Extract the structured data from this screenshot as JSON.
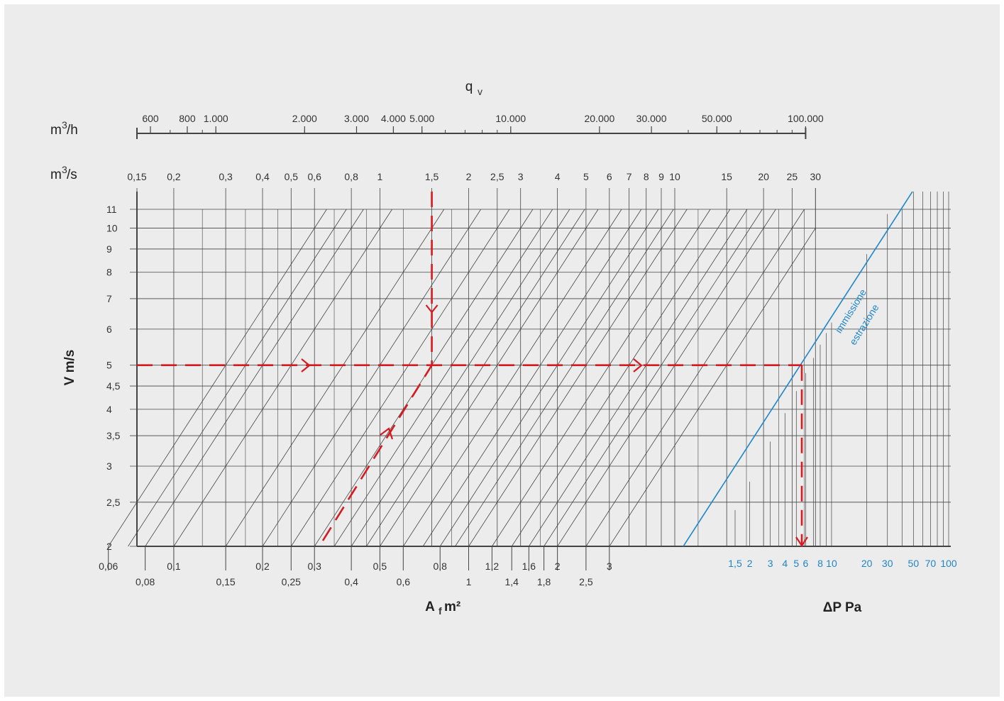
{
  "chart_data": {
    "type": "nomogram",
    "top_axis": {
      "title": "q",
      "title_sub": "v",
      "unit_h": "m",
      "unit_h_sup": "3",
      "unit_h_suffix": "/h",
      "ticks_h": [
        "600",
        "800",
        "1.000",
        "2.000",
        "3.000",
        "4.000",
        "5.000",
        "10.000",
        "20.000",
        "30.000",
        "50.000",
        "100.000"
      ],
      "unit_s": "m",
      "unit_s_sup": "3",
      "unit_s_suffix": "/s",
      "ticks_s": [
        "0,15",
        "0,2",
        "0,3",
        "0,4",
        "0,5",
        "0,6",
        "0,8",
        "1",
        "1,5",
        "2",
        "2,5",
        "3",
        "4",
        "5",
        "6",
        "7",
        "8",
        "9",
        "10",
        "15",
        "20",
        "25",
        "30"
      ]
    },
    "y_axis": {
      "label": "V m/s",
      "ticks": [
        "11",
        "10",
        "9",
        "8",
        "7",
        "6",
        "5",
        "4,5",
        "4",
        "3,5",
        "3",
        "2,5",
        "2"
      ],
      "range": [
        2,
        11
      ],
      "scale": "log"
    },
    "area_axis": {
      "label": "A",
      "label_sub": "f",
      "label_suffix": " m²",
      "ticks": [
        "0,06",
        "0,08",
        "0,1",
        "0,15",
        "0,2",
        "0,25",
        "0,3",
        "0,4",
        "0,5",
        "0,6",
        "0,8",
        "1",
        "1,2",
        "1,4",
        "1,6",
        "1,8",
        "2",
        "2,5",
        "3"
      ]
    },
    "pressure_axis": {
      "label": "ΔP Pa",
      "ticks": [
        "1,5",
        "2",
        "3",
        "4",
        "5",
        "6",
        "8",
        "10",
        "20",
        "30",
        "50",
        "70",
        "100"
      ],
      "curve_labels": [
        "immissione",
        "estrazione"
      ]
    },
    "example": {
      "flow_m3s": 1.5,
      "velocity_ms": 5,
      "area_m2": 0.3,
      "pressure_pa": 5.5
    },
    "colors": {
      "grid": "#444444",
      "pressure": "#1f86c8",
      "example": "#d71920",
      "background": "#ececec"
    }
  }
}
